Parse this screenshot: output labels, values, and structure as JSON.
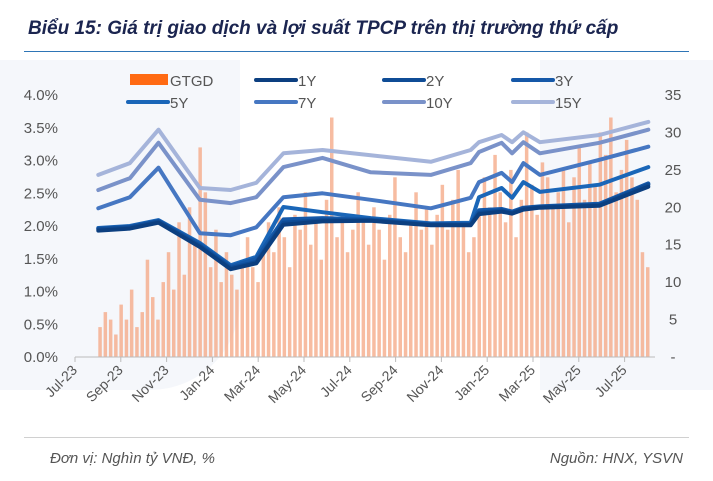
{
  "title": "Biểu 15: Giá trị giao dịch và lợi suất TPCP trên thị trường thứ cấp",
  "footer": {
    "unit": "Đơn vị: Nghìn tỷ VNĐ, %",
    "source": "Nguồn: HNX, YSVN"
  },
  "chart_data": {
    "type": "bar+line",
    "left_axis": {
      "ticks": [
        "0.0%",
        "0.5%",
        "1.0%",
        "1.5%",
        "2.0%",
        "2.5%",
        "3.0%",
        "3.5%",
        "4.0%"
      ],
      "range": [
        0,
        4.0
      ]
    },
    "right_axis": {
      "ticks": [
        "-",
        "5",
        "10",
        "15",
        "20",
        "25",
        "30",
        "35"
      ],
      "range": [
        0,
        35
      ]
    },
    "x_ticks": [
      "Jul-23",
      "Sep-23",
      "Nov-23",
      "Jan-24",
      "Mar-24",
      "May-24",
      "Jul-24",
      "Sep-24",
      "Nov-24",
      "Jan-25",
      "Mar-25",
      "May-25",
      "Jul-25"
    ],
    "legend_position": "top",
    "grid": false,
    "bars": {
      "name": "GTGD",
      "color": "#f4a582",
      "legend_color": "#ff6a13",
      "start": "2023-08-01",
      "step_days": 7,
      "values": [
        4,
        6,
        5,
        3,
        7,
        5,
        9,
        4,
        6,
        13,
        8,
        5,
        10,
        14,
        9,
        18,
        11,
        20,
        15,
        28,
        22,
        12,
        17,
        10,
        14,
        11,
        9,
        13,
        16,
        12,
        10,
        15,
        18,
        14,
        20,
        16,
        12,
        19,
        17,
        22,
        15,
        18,
        13,
        21,
        32,
        16,
        19,
        14,
        17,
        22,
        18,
        15,
        20,
        17,
        13,
        19,
        24,
        16,
        14,
        18,
        22,
        17,
        20,
        15,
        19,
        23,
        17,
        21,
        25,
        18,
        14,
        16,
        19,
        24,
        20,
        27,
        22,
        18,
        25,
        16,
        21,
        30,
        23,
        19,
        26,
        24,
        20,
        22,
        25,
        18,
        24,
        28,
        21,
        26,
        23,
        30,
        27,
        32,
        22,
        25,
        29,
        24,
        21,
        14,
        12
      ]
    },
    "lines": {
      "x": [
        "2023-08-01",
        "2023-09-12",
        "2023-10-20",
        "2023-12-14",
        "2024-01-24",
        "2024-02-27",
        "2024-04-03",
        "2024-05-25",
        "2024-07-28",
        "2024-10-16",
        "2024-12-08",
        "2024-12-19",
        "2025-01-18",
        "2025-02-01",
        "2025-02-16",
        "2025-03-10",
        "2025-05-28",
        "2025-08-01"
      ],
      "series": [
        {
          "name": "15Y",
          "color": "#a5b4da",
          "values": [
            2.78,
            2.96,
            3.47,
            2.58,
            2.55,
            2.66,
            3.11,
            3.16,
            3.08,
            2.98,
            3.16,
            3.28,
            3.39,
            3.28,
            3.43,
            3.28,
            3.39,
            3.59
          ]
        },
        {
          "name": "10Y",
          "color": "#7a92c9",
          "values": [
            2.55,
            2.73,
            3.27,
            2.4,
            2.35,
            2.44,
            2.9,
            3.04,
            2.82,
            2.78,
            2.96,
            3.13,
            3.27,
            3.11,
            3.28,
            3.11,
            3.27,
            3.47
          ]
        },
        {
          "name": "7Y",
          "color": "#4677c2",
          "values": [
            2.27,
            2.44,
            2.89,
            1.89,
            1.86,
            1.98,
            2.44,
            2.5,
            2.4,
            2.27,
            2.43,
            2.67,
            2.81,
            2.67,
            2.96,
            2.78,
            3.01,
            3.21
          ]
        },
        {
          "name": "5Y",
          "color": "#1a66b8",
          "values": [
            1.97,
            2.0,
            2.09,
            1.74,
            1.4,
            1.53,
            2.29,
            2.21,
            2.12,
            2.04,
            2.05,
            2.44,
            2.58,
            2.43,
            2.67,
            2.52,
            2.63,
            2.9
          ]
        },
        {
          "name": "3Y",
          "color": "#1558a8",
          "values": [
            1.96,
            1.99,
            2.08,
            1.72,
            1.38,
            1.5,
            2.1,
            2.12,
            2.1,
            2.03,
            2.03,
            2.24,
            2.26,
            2.22,
            2.28,
            2.3,
            2.34,
            2.65
          ]
        },
        {
          "name": "2Y",
          "color": "#0f4c96",
          "values": [
            1.95,
            1.98,
            2.07,
            1.7,
            1.36,
            1.45,
            2.05,
            2.09,
            2.09,
            2.02,
            2.02,
            2.2,
            2.24,
            2.2,
            2.27,
            2.29,
            2.32,
            2.63
          ]
        },
        {
          "name": "1Y",
          "color": "#0c3f80",
          "values": [
            1.93,
            1.96,
            2.05,
            1.68,
            1.34,
            1.43,
            2.02,
            2.07,
            2.08,
            2.01,
            2.01,
            2.18,
            2.22,
            2.19,
            2.25,
            2.28,
            2.31,
            2.6
          ]
        }
      ]
    },
    "legend": [
      "GTGD",
      "1Y",
      "2Y",
      "3Y",
      "5Y",
      "7Y",
      "10Y",
      "15Y"
    ]
  }
}
